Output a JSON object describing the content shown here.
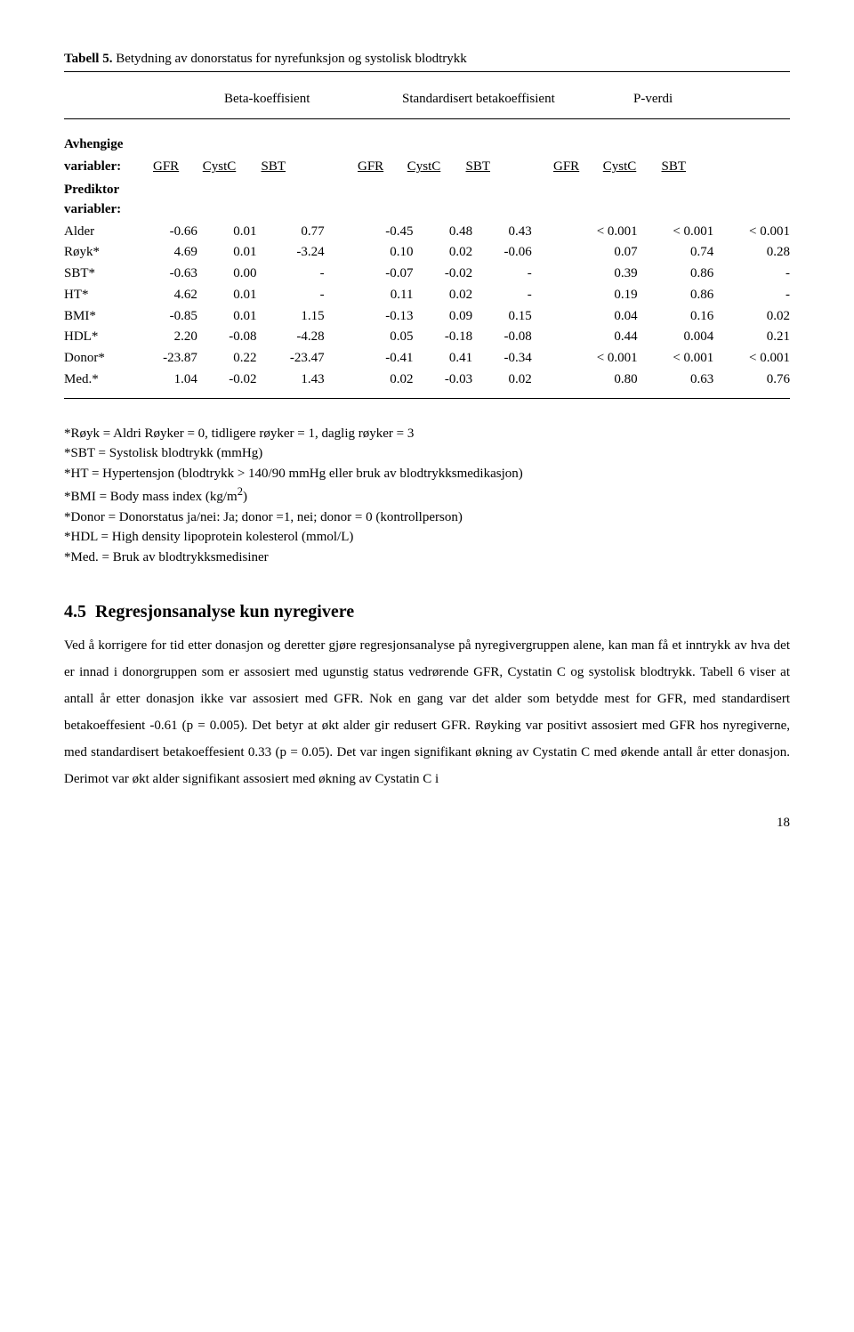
{
  "title_prefix": "Tabell 5.",
  "title_rest": " Betydning av donorstatus for nyrefunksjon og systolisk blodtrykk",
  "colhead1": "Beta-koeffisient",
  "colhead2": "Standardisert betakoeffisient",
  "colhead3": "P-verdi",
  "avhengige": "Avhengige",
  "variabler_lbl": "variabler:",
  "gfr": "GFR",
  "cystc": "CystC",
  "sbt": "SBT",
  "prediktor": "Prediktor",
  "variabler2": "variabler:",
  "rows": [
    {
      "l": "Alder",
      "a": "-0.66",
      "b": "0.01",
      "c": "0.77",
      "d": "-0.45",
      "e": "0.48",
      "f": "0.43",
      "g": "< 0.001",
      "h": "< 0.001",
      "i": "< 0.001"
    },
    {
      "l": "Røyk*",
      "a": "4.69",
      "b": "0.01",
      "c": "-3.24",
      "d": "0.10",
      "e": "0.02",
      "f": "-0.06",
      "g": "0.07",
      "h": "0.74",
      "i": "0.28"
    },
    {
      "l": "SBT*",
      "a": "-0.63",
      "b": "0.00",
      "c": "-",
      "d": "-0.07",
      "e": "-0.02",
      "f": "-",
      "g": "0.39",
      "h": "0.86",
      "i": "-"
    },
    {
      "l": "HT*",
      "a": "4.62",
      "b": "0.01",
      "c": "-",
      "d": "0.11",
      "e": "0.02",
      "f": "-",
      "g": "0.19",
      "h": "0.86",
      "i": "-"
    },
    {
      "l": "BMI*",
      "a": "-0.85",
      "b": "0.01",
      "c": "1.15",
      "d": "-0.13",
      "e": "0.09",
      "f": "0.15",
      "g": "0.04",
      "h": "0.16",
      "i": "0.02"
    },
    {
      "l": "HDL*",
      "a": "2.20",
      "b": "-0.08",
      "c": "-4.28",
      "d": "0.05",
      "e": "-0.18",
      "f": "-0.08",
      "g": "0.44",
      "h": "0.004",
      "i": "0.21"
    },
    {
      "l": "Donor*",
      "a": "-23.87",
      "b": "0.22",
      "c": "-23.47",
      "d": "-0.41",
      "e": "0.41",
      "f": "-0.34",
      "g": "< 0.001",
      "h": "< 0.001",
      "i": "< 0.001"
    },
    {
      "l": "Med.*",
      "a": "1.04",
      "b": "-0.02",
      "c": "1.43",
      "d": "0.02",
      "e": "-0.03",
      "f": "0.02",
      "g": "0.80",
      "h": "0.63",
      "i": "0.76"
    }
  ],
  "foot1": "*Røyk = Aldri Røyker = 0, tidligere røyker = 1, daglig røyker = 3",
  "foot2": "*SBT = Systolisk blodtrykk (mmHg)",
  "foot3": "*HT = Hypertensjon (blodtrykk > 140/90 mmHg eller bruk av blodtrykksmedikasjon)",
  "foot4_a": "*BMI = Body mass index (kg/m",
  "foot4_b": "2",
  "foot4_c": ")",
  "foot5": "*Donor = Donorstatus ja/nei: Ja; donor =1, nei; donor = 0 (kontrollperson)",
  "foot6": "*HDL = High density lipoprotein kolesterol (mmol/L)",
  "foot7": "*Med. = Bruk av blodtrykksmedisiner",
  "section_num": "4.5",
  "section_title": "Regresjonsanalyse kun nyregivere",
  "body_text": "Ved å korrigere for tid etter donasjon og deretter gjøre regresjonsanalyse på nyregivergruppen alene, kan man få et inntrykk av hva det er innad i donorgruppen som er assosiert med ugunstig status vedrørende GFR, Cystatin C og systolisk blodtrykk. Tabell 6 viser at antall år etter donasjon ikke var assosiert med GFR. Nok en gang var det alder som betydde mest for GFR, med standardisert betakoeffesient -0.61 (p = 0.005). Det betyr at økt alder gir redusert GFR. Røyking var positivt assosiert med GFR hos nyregiverne, med standardisert betakoeffesient  0.33 (p = 0.05). Det var ingen signifikant økning av Cystatin C med økende antall år etter donasjon. Derimot var økt alder signifikant assosiert med økning av Cystatin C i",
  "pagenum": "18"
}
